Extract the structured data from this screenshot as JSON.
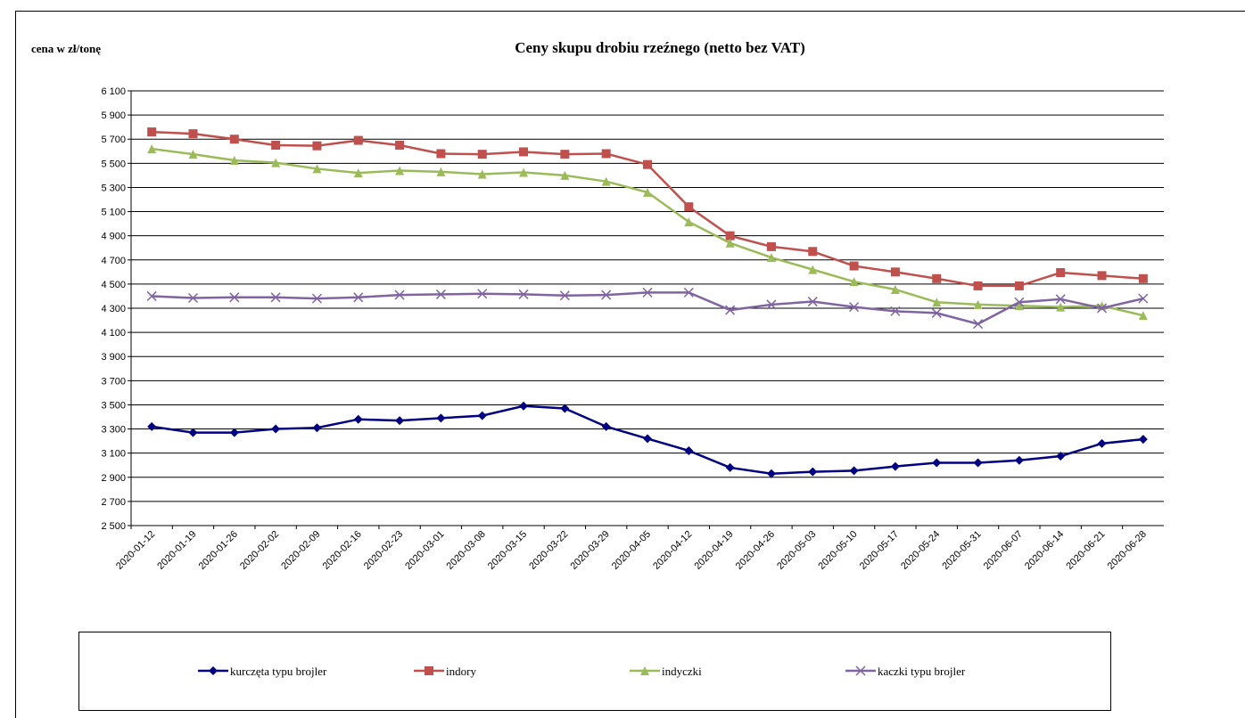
{
  "chart_data": {
    "type": "line",
    "title": "Ceny skupu drobiu rzeźnego (netto bez VAT)",
    "y_label": "cena w zł/tonę",
    "categories": [
      "2020-01-12",
      "2020-01-19",
      "2020-01-26",
      "2020-02-02",
      "2020-02-09",
      "2020-02-16",
      "2020-02-23",
      "2020-03-01",
      "2020-03-08",
      "2020-03-15",
      "2020-03-22",
      "2020-03-29",
      "2020-04-05",
      "2020-04-12",
      "2020-04-19",
      "2020-04-26",
      "2020-05-03",
      "2020-05-10",
      "2020-05-17",
      "2020-05-24",
      "2020-05-31",
      "2020-06-07",
      "2020-06-14",
      "2020-06-21",
      "2020-06-28"
    ],
    "series": [
      {
        "name": "kurczęta typu brojler",
        "color": "#000080",
        "marker": "diamond",
        "values": [
          3320,
          3270,
          3270,
          3300,
          3310,
          3380,
          3370,
          3390,
          3410,
          3490,
          3470,
          3320,
          3220,
          3120,
          2980,
          2930,
          2945,
          2955,
          2990,
          3020,
          3020,
          3040,
          3075,
          3180,
          3215
        ]
      },
      {
        "name": "indory",
        "color": "#c0504d",
        "marker": "square",
        "values": [
          5760,
          5745,
          5700,
          5650,
          5645,
          5690,
          5650,
          5580,
          5575,
          5595,
          5575,
          5580,
          5490,
          5140,
          4900,
          4810,
          4770,
          4650,
          4600,
          4545,
          4485,
          4485,
          4595,
          4570,
          4545
        ]
      },
      {
        "name": "indyczki",
        "color": "#9bbb59",
        "marker": "triangle",
        "values": [
          5620,
          5575,
          5525,
          5505,
          5455,
          5420,
          5440,
          5430,
          5410,
          5425,
          5400,
          5350,
          5260,
          5015,
          4840,
          4720,
          4620,
          4520,
          4455,
          4350,
          4330,
          4320,
          4310,
          4320,
          4240
        ]
      },
      {
        "name": "kaczki typu brojler",
        "color": "#8064a2",
        "marker": "x",
        "values": [
          4400,
          4385,
          4390,
          4390,
          4380,
          4390,
          4410,
          4415,
          4420,
          4415,
          4405,
          4410,
          4430,
          4430,
          4285,
          4330,
          4355,
          4310,
          4275,
          4260,
          4170,
          4350,
          4375,
          4300,
          4380
        ]
      }
    ],
    "ylim": [
      2500,
      6100
    ],
    "yticks": [
      {
        "value": 2500,
        "label": "2 500"
      },
      {
        "value": 2700,
        "label": "2 700"
      },
      {
        "value": 2900,
        "label": "2 900"
      },
      {
        "value": 3100,
        "label": "3 100"
      },
      {
        "value": 3300,
        "label": "3 300"
      },
      {
        "value": 3500,
        "label": "3 500"
      },
      {
        "value": 3700,
        "label": "3 700"
      },
      {
        "value": 3900,
        "label": "3 900"
      },
      {
        "value": 4100,
        "label": "4 100"
      },
      {
        "value": 4300,
        "label": "4 300"
      },
      {
        "value": 4500,
        "label": "4 500"
      },
      {
        "value": 4700,
        "label": "4 700"
      },
      {
        "value": 4900,
        "label": "4 900"
      },
      {
        "value": 5100,
        "label": "5 100"
      },
      {
        "value": 5300,
        "label": "5 300"
      },
      {
        "value": 5500,
        "label": "5 500"
      },
      {
        "value": 5700,
        "label": "5 700"
      },
      {
        "value": 5900,
        "label": "5 900"
      },
      {
        "value": 6100,
        "label": "6 100"
      }
    ],
    "grid": true,
    "legend": "bottom"
  }
}
